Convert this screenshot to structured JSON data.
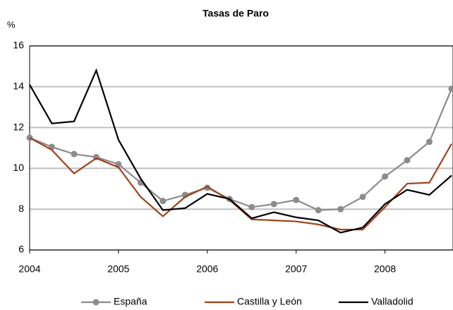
{
  "chart_data": {
    "type": "line",
    "title": "Tasas de Paro",
    "y_label": "%",
    "categories": [
      "2004",
      null,
      null,
      null,
      "2005",
      null,
      null,
      null,
      "2006",
      null,
      null,
      null,
      "2007",
      null,
      null,
      null,
      "2008",
      null,
      null,
      null
    ],
    "series": [
      {
        "name": "España",
        "color": "#8c8c8c",
        "marker": true,
        "values": [
          11.5,
          11.05,
          10.7,
          10.55,
          10.2,
          9.3,
          8.4,
          8.7,
          9.05,
          8.5,
          8.1,
          8.25,
          8.45,
          7.95,
          8.0,
          8.6,
          9.6,
          10.4,
          11.3,
          13.9
        ]
      },
      {
        "name": "Castilla y León",
        "color": "#a0421a",
        "marker": false,
        "values": [
          11.5,
          10.9,
          9.75,
          10.5,
          10.05,
          8.6,
          7.65,
          8.6,
          9.1,
          8.45,
          7.5,
          7.45,
          7.4,
          7.25,
          7.0,
          7.0,
          8.1,
          9.25,
          9.3,
          11.2
        ]
      },
      {
        "name": "Valladolid",
        "color": "#000000",
        "marker": false,
        "values": [
          14.1,
          12.2,
          12.3,
          14.8,
          11.4,
          9.5,
          7.95,
          8.05,
          8.75,
          8.5,
          7.55,
          7.85,
          7.6,
          7.45,
          6.85,
          7.1,
          8.25,
          8.95,
          8.7,
          9.65
        ]
      }
    ],
    "ylim": [
      6,
      16
    ],
    "yticks": [
      6,
      8,
      10,
      12,
      14,
      16
    ],
    "grid": true,
    "legend": "bottom"
  }
}
